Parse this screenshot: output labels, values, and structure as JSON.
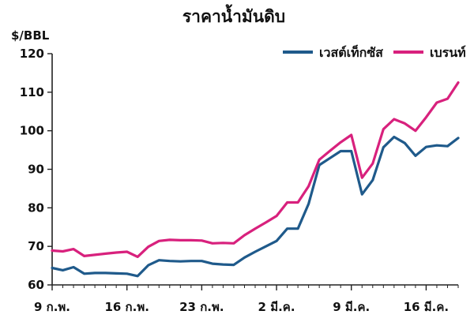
{
  "chart_data": {
    "type": "line",
    "title": "ราคาน้ำมันดิบ",
    "ylabel": "$/BBL",
    "xlabel": "",
    "ylim": [
      60,
      120
    ],
    "yticks": [
      60,
      70,
      80,
      90,
      100,
      110,
      120
    ],
    "x_tick_labels": [
      "9 ก.พ.",
      "16 ก.พ.",
      "23 ก.พ.",
      "2 มี.ค.",
      "9 มี.ค.",
      "16 มี.ค."
    ],
    "x_tick_index": [
      0,
      7,
      14,
      21,
      28,
      35
    ],
    "grid": false,
    "legend_position": "top-right",
    "series": [
      {
        "name": "เวสต์เท็กซัส",
        "color": "#1f5a8b",
        "values": [
          64.4,
          63.8,
          64.6,
          62.9,
          63.1,
          63.1,
          63.0,
          62.9,
          62.3,
          65.1,
          66.4,
          66.2,
          66.1,
          66.2,
          66.2,
          65.5,
          65.3,
          65.2,
          67.1,
          68.6,
          70.0,
          71.4,
          74.6,
          74.6,
          81.0,
          91.1,
          92.9,
          94.7,
          94.7,
          83.5,
          87.2,
          95.7,
          98.4,
          96.8,
          93.5,
          95.8,
          96.2,
          96.0,
          98.1
        ]
      },
      {
        "name": "เบรนท์",
        "color": "#d8217d",
        "values": [
          68.9,
          68.7,
          69.3,
          67.5,
          67.8,
          68.1,
          68.4,
          68.6,
          67.3,
          69.9,
          71.4,
          71.7,
          71.6,
          71.6,
          71.5,
          70.8,
          70.9,
          70.8,
          72.9,
          74.6,
          76.2,
          77.9,
          81.4,
          81.4,
          85.6,
          92.5,
          94.8,
          97.0,
          98.9,
          87.8,
          91.5,
          100.4,
          103.0,
          101.9,
          100.0,
          103.5,
          107.3,
          108.3,
          112.5
        ]
      }
    ]
  }
}
